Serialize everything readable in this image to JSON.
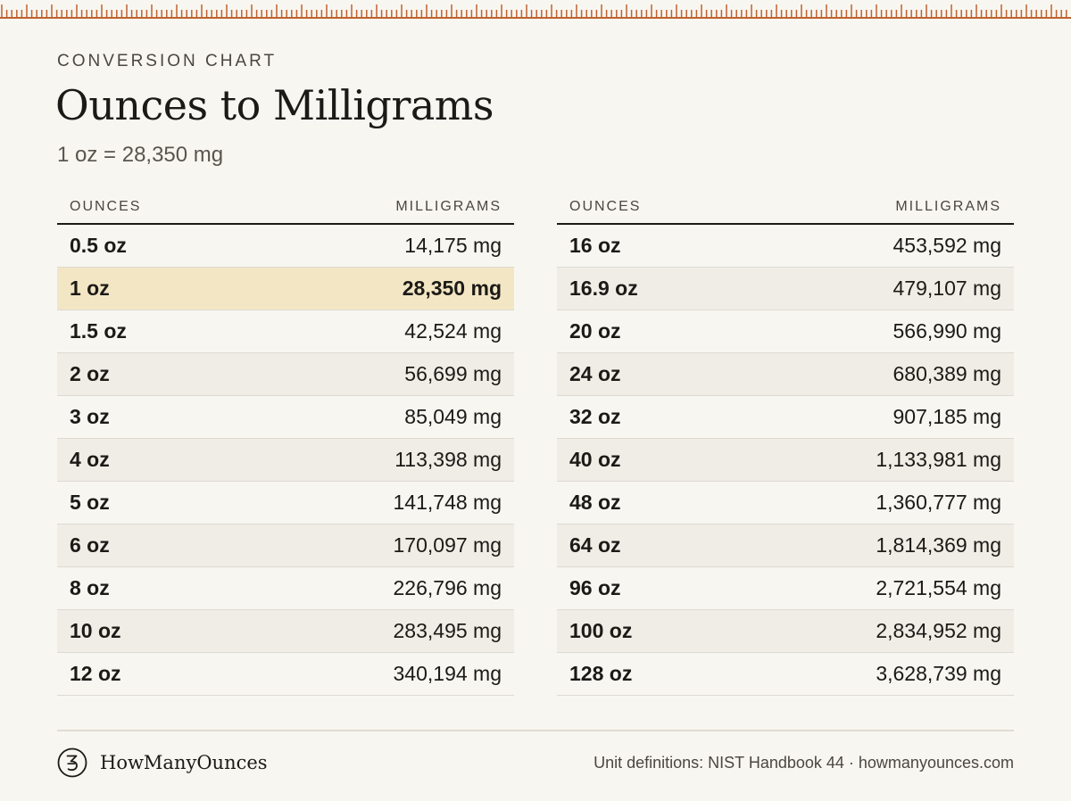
{
  "header": {
    "eyebrow": "CONVERSION CHART",
    "title": "Ounces to Milligrams",
    "subtitle": "1 oz = 28,350 mg"
  },
  "table_left": {
    "col_ounces": "OUNCES",
    "col_milligrams": "MILLIGRAMS",
    "rows": [
      {
        "oz": "0.5 oz",
        "mg": "14,175 mg"
      },
      {
        "oz": "1 oz",
        "mg": "28,350 mg"
      },
      {
        "oz": "1.5 oz",
        "mg": "42,524 mg"
      },
      {
        "oz": "2 oz",
        "mg": "56,699 mg"
      },
      {
        "oz": "3 oz",
        "mg": "85,049 mg"
      },
      {
        "oz": "4 oz",
        "mg": "113,398 mg"
      },
      {
        "oz": "5 oz",
        "mg": "141,748 mg"
      },
      {
        "oz": "6 oz",
        "mg": "170,097 mg"
      },
      {
        "oz": "8 oz",
        "mg": "226,796 mg"
      },
      {
        "oz": "10 oz",
        "mg": "283,495 mg"
      },
      {
        "oz": "12 oz",
        "mg": "340,194 mg"
      }
    ]
  },
  "table_right": {
    "col_ounces": "OUNCES",
    "col_milligrams": "MILLIGRAMS",
    "rows": [
      {
        "oz": "16 oz",
        "mg": "453,592 mg"
      },
      {
        "oz": "16.9 oz",
        "mg": "479,107 mg"
      },
      {
        "oz": "20 oz",
        "mg": "566,990 mg"
      },
      {
        "oz": "24 oz",
        "mg": "680,389 mg"
      },
      {
        "oz": "32 oz",
        "mg": "907,185 mg"
      },
      {
        "oz": "40 oz",
        "mg": "1,133,981 mg"
      },
      {
        "oz": "48 oz",
        "mg": "1,360,777 mg"
      },
      {
        "oz": "64 oz",
        "mg": "1,814,369 mg"
      },
      {
        "oz": "96 oz",
        "mg": "2,721,554 mg"
      },
      {
        "oz": "100 oz",
        "mg": "2,834,952 mg"
      },
      {
        "oz": "128 oz",
        "mg": "3,628,739 mg"
      }
    ]
  },
  "highlighted_row": "1 oz",
  "footer": {
    "logo_icon": "ounce-scroll-logo",
    "brand": "HowManyOunces",
    "source": "Unit definitions: NIST Handbook 44 · howmanyounces.com"
  },
  "colors": {
    "background": "#f8f6f1",
    "accent_ruler": "#c0622e",
    "highlight": "#f3e6c4",
    "alt_row": "#f0ede6",
    "text": "#1c1a17"
  }
}
